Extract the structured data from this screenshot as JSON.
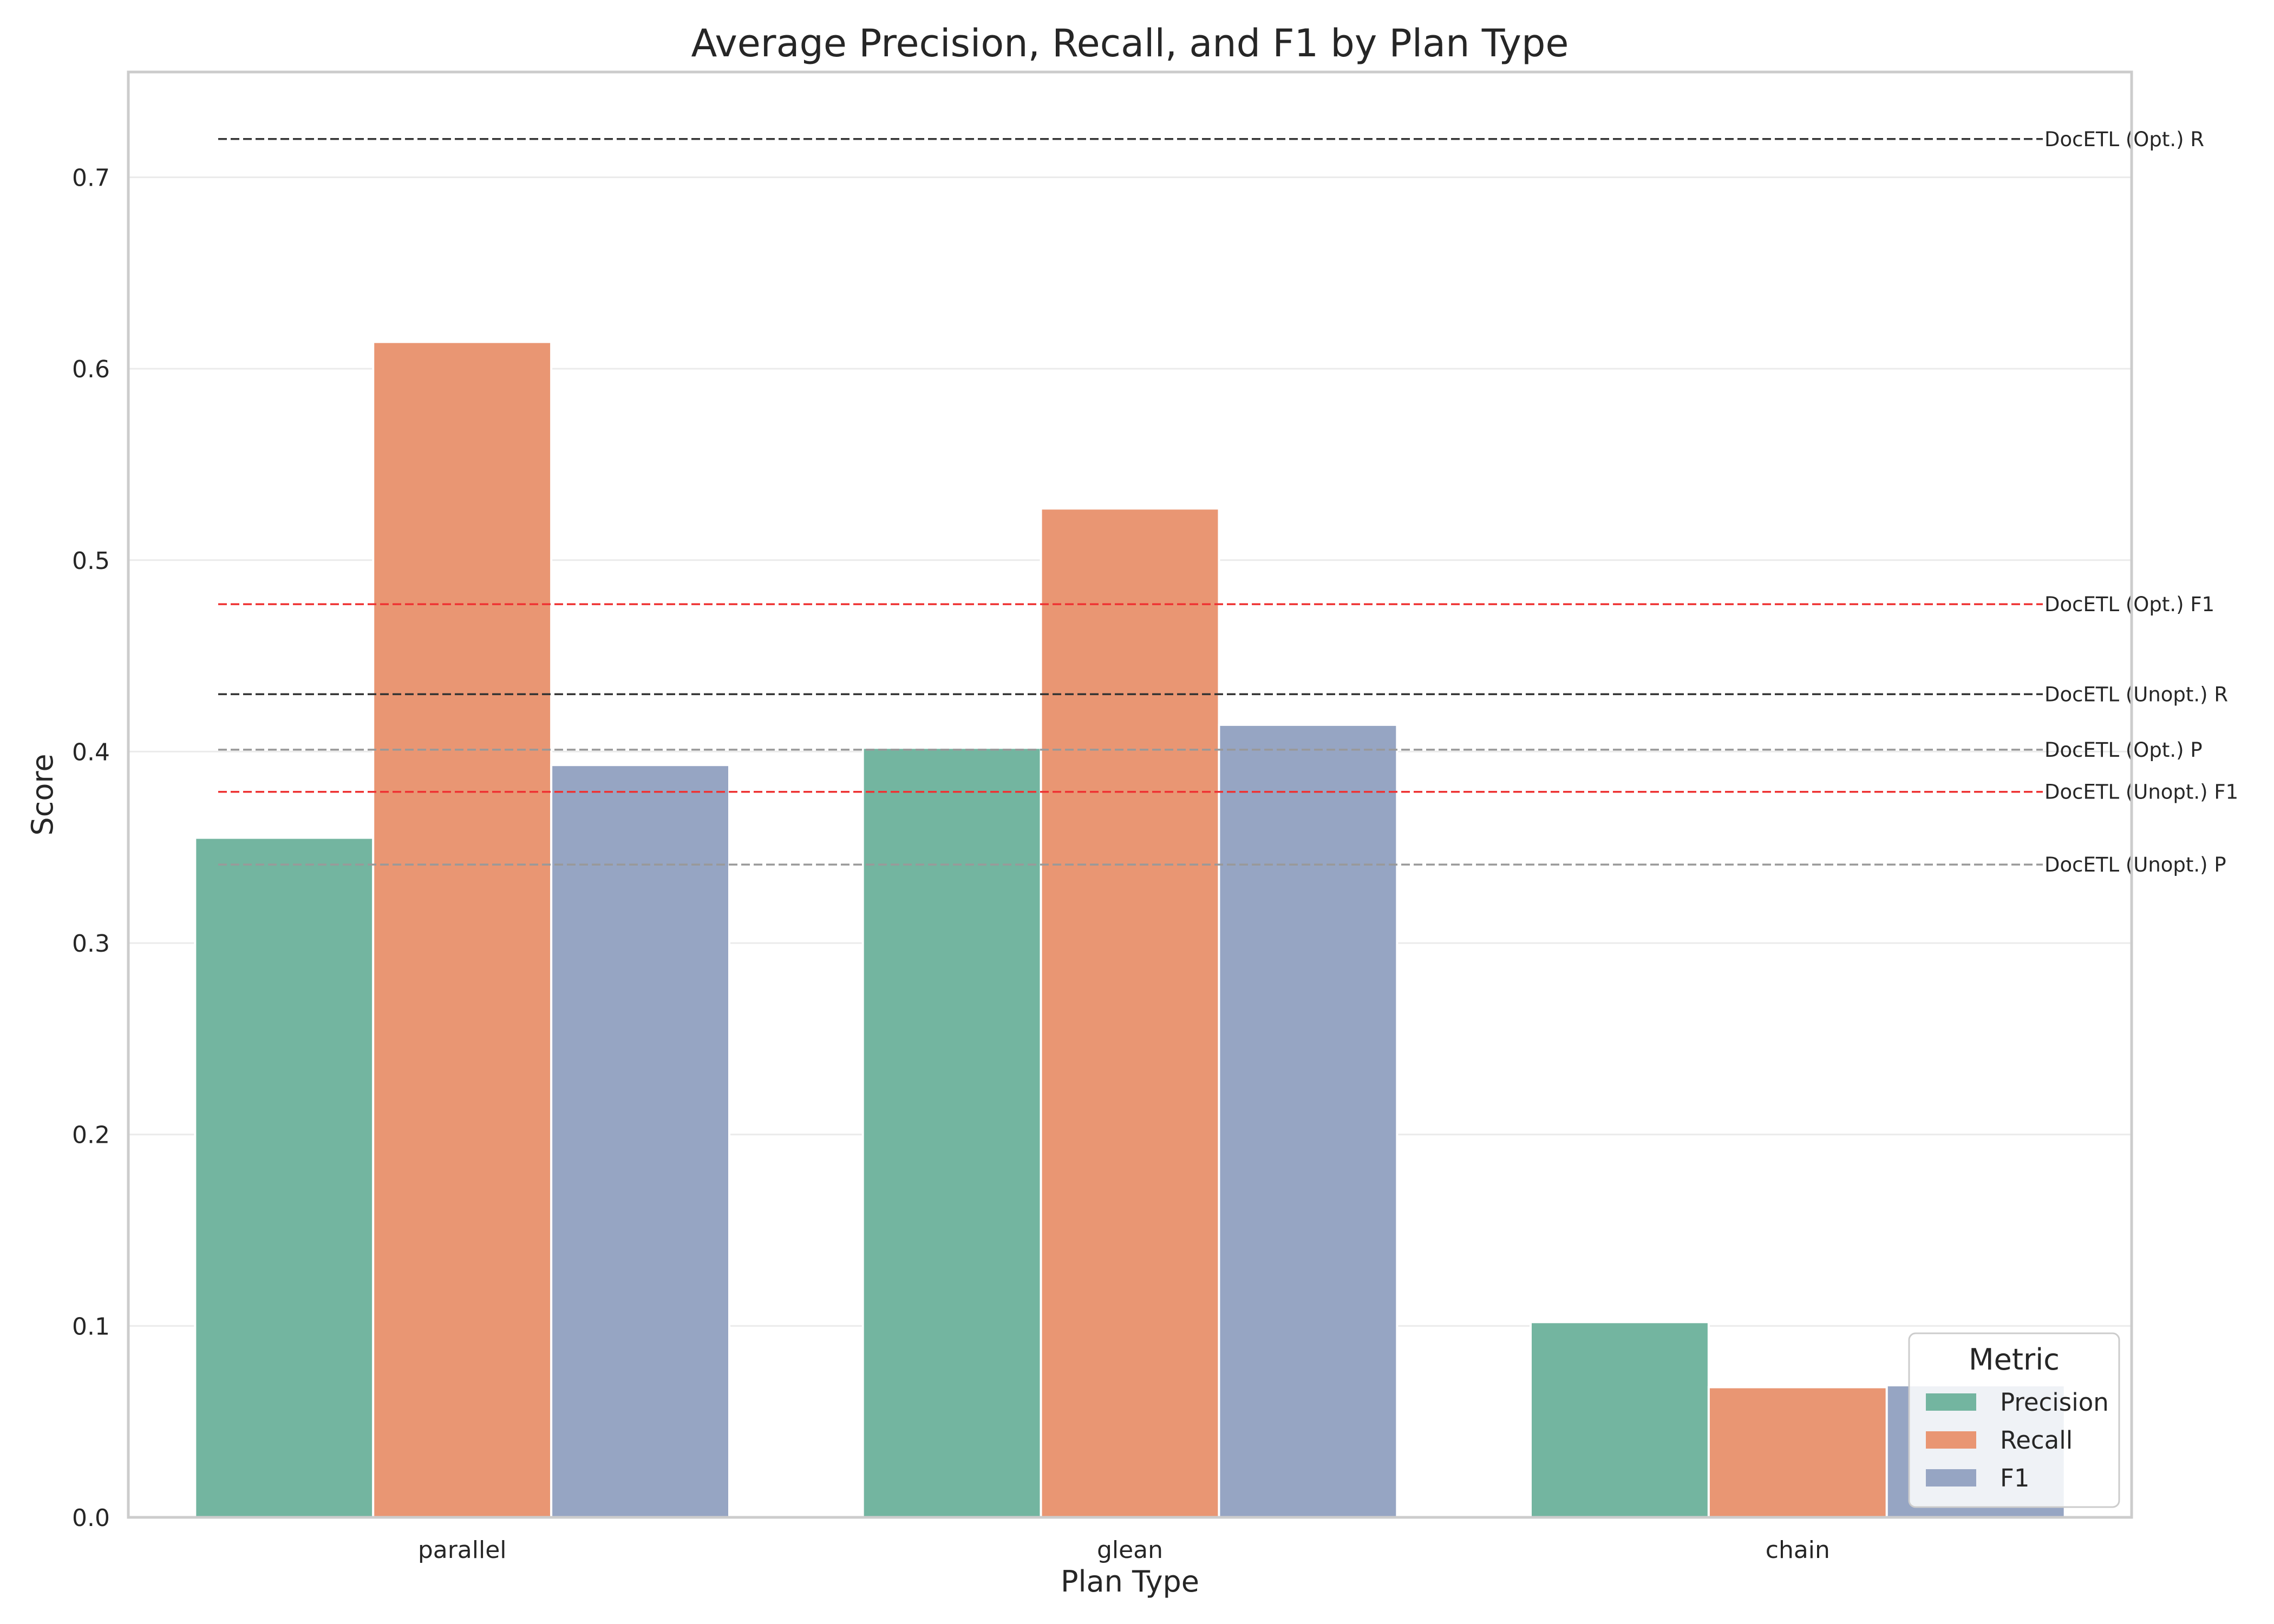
{
  "chart_data": {
    "type": "bar",
    "title": "Average Precision, Recall, and F1 by Plan Type",
    "xlabel": "Plan Type",
    "ylabel": "Score",
    "ylim": [
      0,
      0.755
    ],
    "yticks": [
      0.0,
      0.1,
      0.2,
      0.3,
      0.4,
      0.5,
      0.6,
      0.7
    ],
    "ytick_labels": [
      "0.0",
      "0.1",
      "0.2",
      "0.3",
      "0.4",
      "0.5",
      "0.6",
      "0.7"
    ],
    "grid": true,
    "categories": [
      "parallel",
      "glean",
      "chain"
    ],
    "series": [
      {
        "name": "Precision",
        "color": "#73b5a0",
        "values": [
          0.355,
          0.402,
          0.102
        ]
      },
      {
        "name": "Recall",
        "color": "#e99673",
        "values": [
          0.614,
          0.527,
          0.068
        ]
      },
      {
        "name": "F1",
        "color": "#96a5c3",
        "values": [
          0.393,
          0.414,
          0.069
        ]
      }
    ],
    "reference_lines": [
      {
        "label": "DocETL (Opt.) R",
        "value": 0.72,
        "color": "#333333"
      },
      {
        "label": "DocETL (Opt.) F1",
        "value": 0.477,
        "color": "#ee3333"
      },
      {
        "label": "DocETL (Unopt.) R",
        "value": 0.43,
        "color": "#333333"
      },
      {
        "label": "DocETL (Opt.) P",
        "value": 0.401,
        "color": "#999999"
      },
      {
        "label": "DocETL (Unopt.) F1",
        "value": 0.379,
        "color": "#ee3333"
      },
      {
        "label": "DocETL (Unopt.) P",
        "value": 0.341,
        "color": "#999999"
      }
    ],
    "legend": {
      "title": "Metric",
      "placement": "lower-right"
    }
  }
}
